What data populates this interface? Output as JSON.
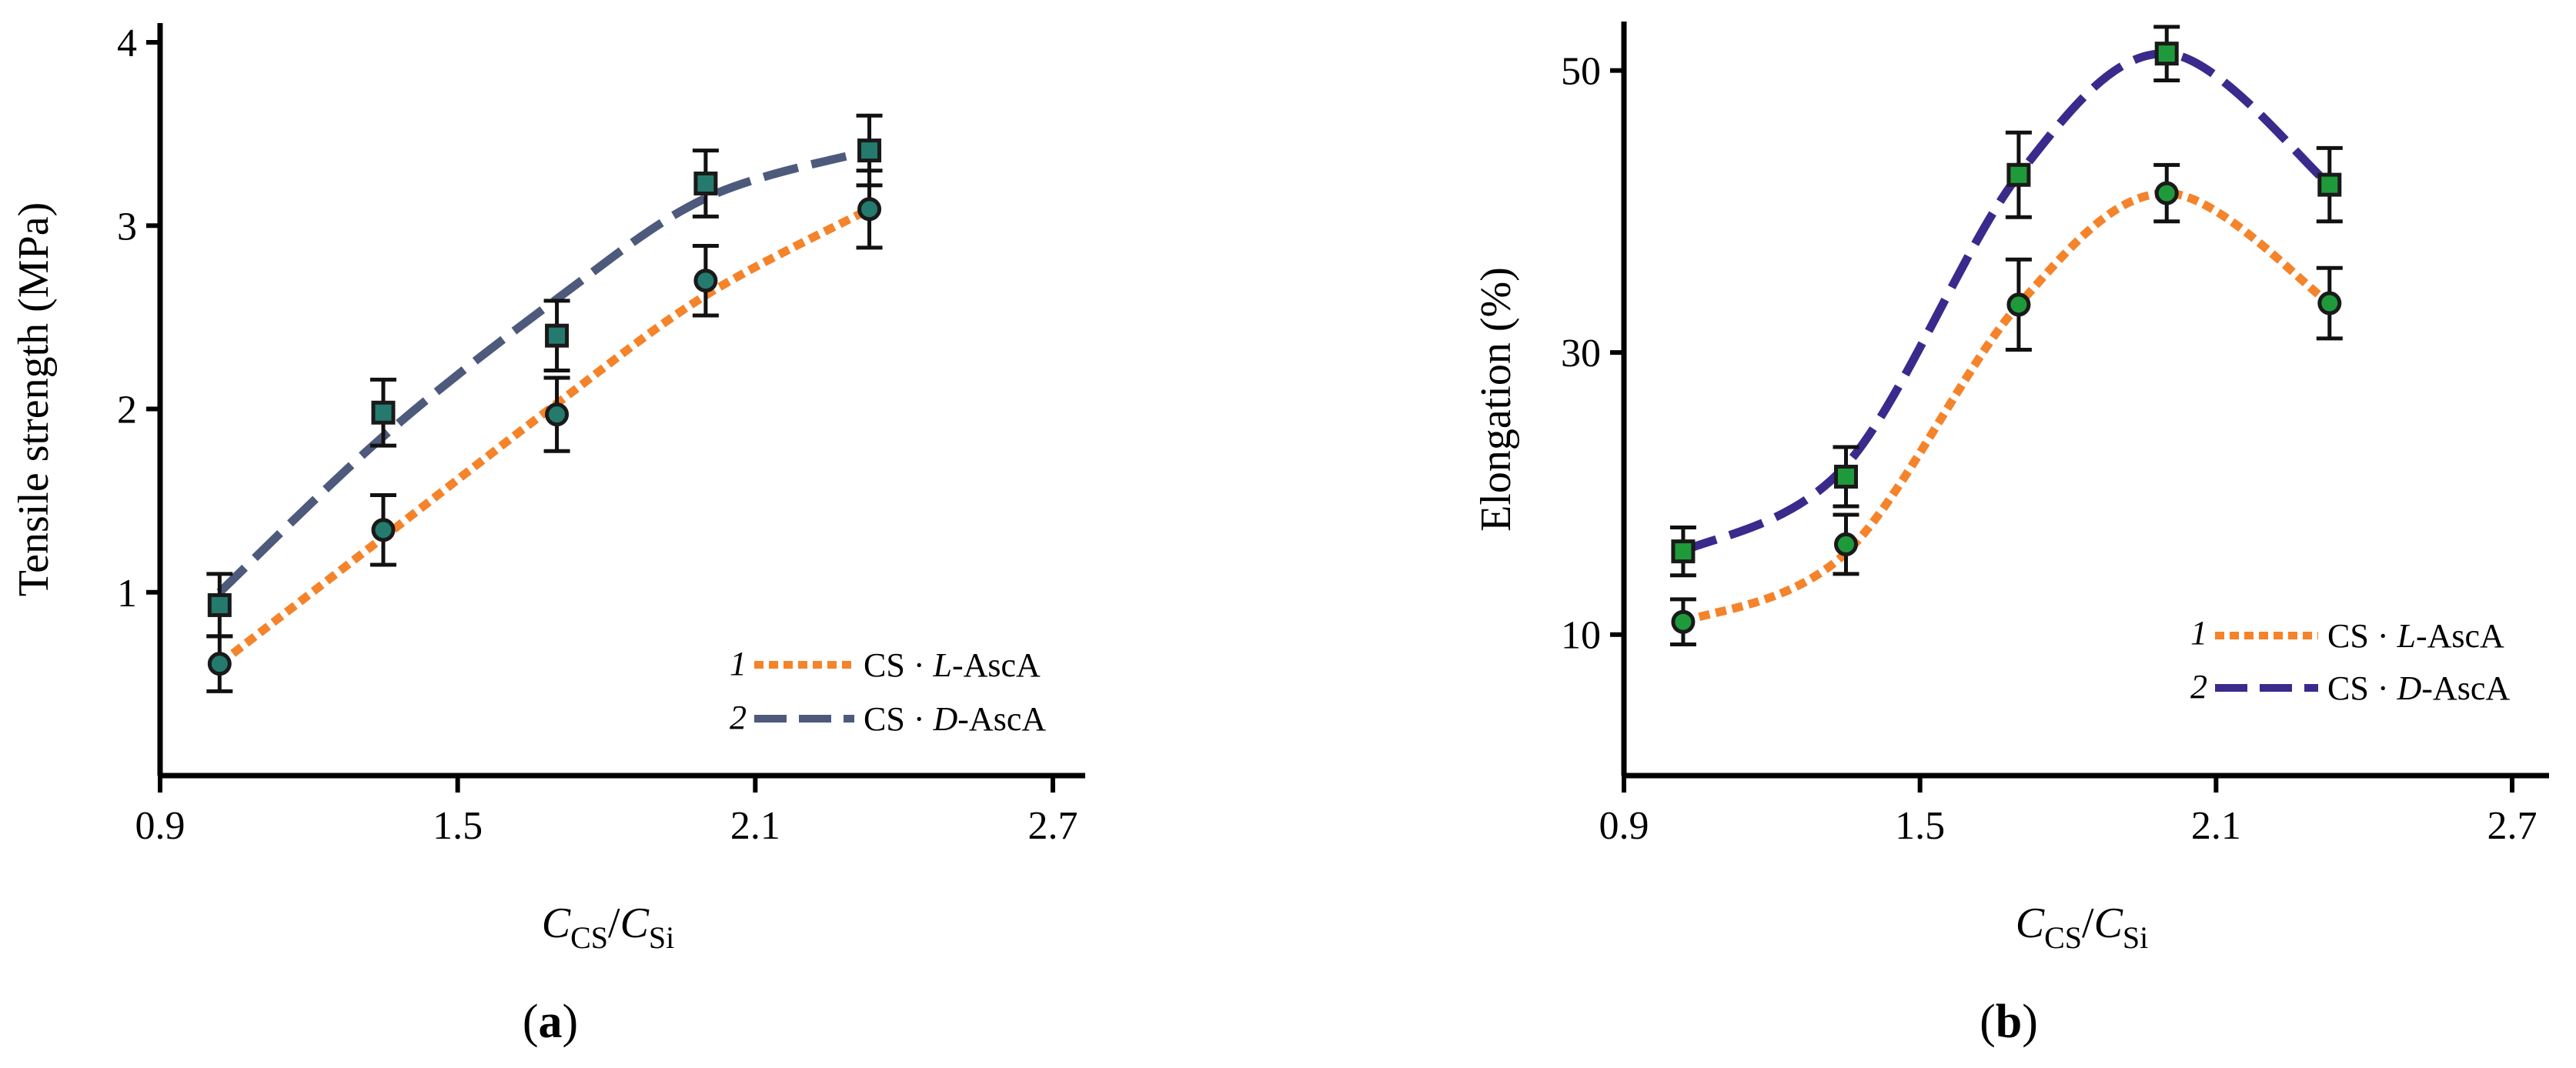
{
  "figure": {
    "colors": {
      "axis": "#000000",
      "series_L_line": "#F5832A",
      "series_D_line_a": "#4E5A7C",
      "series_D_line_b": "#3A2A8C",
      "marker_a": "#257A6E",
      "marker_b": "#1E9A3A",
      "marker_edge": "#1A1A1A"
    }
  },
  "chart_data": [
    {
      "type": "line",
      "panel_label": {
        "open": "(",
        "letter": "a",
        "close": ")"
      },
      "title": "",
      "xlabel": {
        "main": "C",
        "sub1": "CS",
        "slash": "/",
        "main2": "C",
        "sub2": "Si"
      },
      "ylabel": "Tensile strength (MPa)",
      "xlim": [
        0.9,
        2.7
      ],
      "ylim": [
        0,
        4
      ],
      "xticks": [
        0.9,
        1.5,
        2.1,
        2.7
      ],
      "xtick_labels": [
        "0.9",
        "1.5",
        "2.1",
        "2.7"
      ],
      "yticks": [
        1,
        2,
        3,
        4
      ],
      "ytick_labels": [
        "1",
        "2",
        "3",
        "4"
      ],
      "x": [
        1.02,
        1.35,
        1.7,
        2.0,
        2.33
      ],
      "legend_position": "bottom-right",
      "series": [
        {
          "name": "CS·L-AscA",
          "legend": {
            "num": "1",
            "pre": "CS · ",
            "italic": "L",
            "post": "-AscA"
          },
          "style": "dotted",
          "color": "#F5832A",
          "marker": "circle",
          "values": [
            0.61,
            1.34,
            1.97,
            2.7,
            3.09
          ],
          "errors": [
            0.15,
            0.19,
            0.2,
            0.19,
            0.21
          ],
          "fit": [
            [
              1.02,
              0.61
            ],
            [
              1.35,
              1.3
            ],
            [
              1.7,
              2.03
            ],
            [
              2.0,
              2.62
            ],
            [
              2.33,
              3.09
            ]
          ]
        },
        {
          "name": "CS·D-AscA",
          "legend": {
            "num": "2",
            "pre": "CS · ",
            "italic": "D",
            "post": "-AscA"
          },
          "style": "dashed",
          "color": "#4E5A7C",
          "marker": "square",
          "values": [
            0.93,
            1.98,
            2.4,
            3.23,
            3.41
          ],
          "errors": [
            0.17,
            0.18,
            0.19,
            0.18,
            0.19
          ],
          "fit": [
            [
              1.02,
              1.0
            ],
            [
              1.35,
              1.85
            ],
            [
              1.7,
              2.6
            ],
            [
              2.0,
              3.15
            ],
            [
              2.33,
              3.41
            ]
          ]
        }
      ]
    },
    {
      "type": "line",
      "panel_label": {
        "open": "(",
        "letter": "b",
        "close": ")"
      },
      "title": "",
      "xlabel": {
        "main": "C",
        "sub1": "CS",
        "slash": "/",
        "main2": "C",
        "sub2": "Si"
      },
      "ylabel": "Elongation (%)",
      "xlim": [
        0.9,
        2.7
      ],
      "ylim": [
        0,
        55
      ],
      "xticks": [
        0.9,
        1.5,
        2.1,
        2.7
      ],
      "xtick_labels": [
        "0.9",
        "1.5",
        "2.1",
        "2.7"
      ],
      "yticks": [
        10,
        30,
        50
      ],
      "ytick_labels": [
        "10",
        "30",
        "50"
      ],
      "x": [
        1.02,
        1.35,
        1.7,
        2.0,
        2.33
      ],
      "legend_position": "bottom-right",
      "series": [
        {
          "name": "CS·L-AscA",
          "legend": {
            "num": "1",
            "pre": "CS · ",
            "italic": "L",
            "post": "-AscA"
          },
          "style": "dotted",
          "color": "#F5832A",
          "marker": "circle",
          "values": [
            10.9,
            16.4,
            33.4,
            41.3,
            33.5
          ],
          "errors": [
            1.6,
            2.1,
            3.2,
            2.0,
            2.5
          ],
          "fit": [
            [
              1.02,
              10.9
            ],
            [
              1.35,
              15.8
            ],
            [
              1.7,
              33.4
            ],
            [
              2.0,
              41.3
            ],
            [
              2.33,
              33.5
            ]
          ]
        },
        {
          "name": "CS·D-AscA",
          "legend": {
            "num": "2",
            "pre": "CS · ",
            "italic": "D",
            "post": "-AscA"
          },
          "style": "dashed",
          "color": "#3A2A8C",
          "marker": "square",
          "values": [
            15.9,
            21.2,
            42.6,
            51.2,
            41.9
          ],
          "errors": [
            1.7,
            2.1,
            3.0,
            1.9,
            2.6
          ],
          "fit": [
            [
              1.02,
              15.9
            ],
            [
              1.35,
              22.0
            ],
            [
              1.7,
              42.6
            ],
            [
              2.0,
              51.2
            ],
            [
              2.33,
              41.9
            ]
          ]
        }
      ]
    }
  ]
}
